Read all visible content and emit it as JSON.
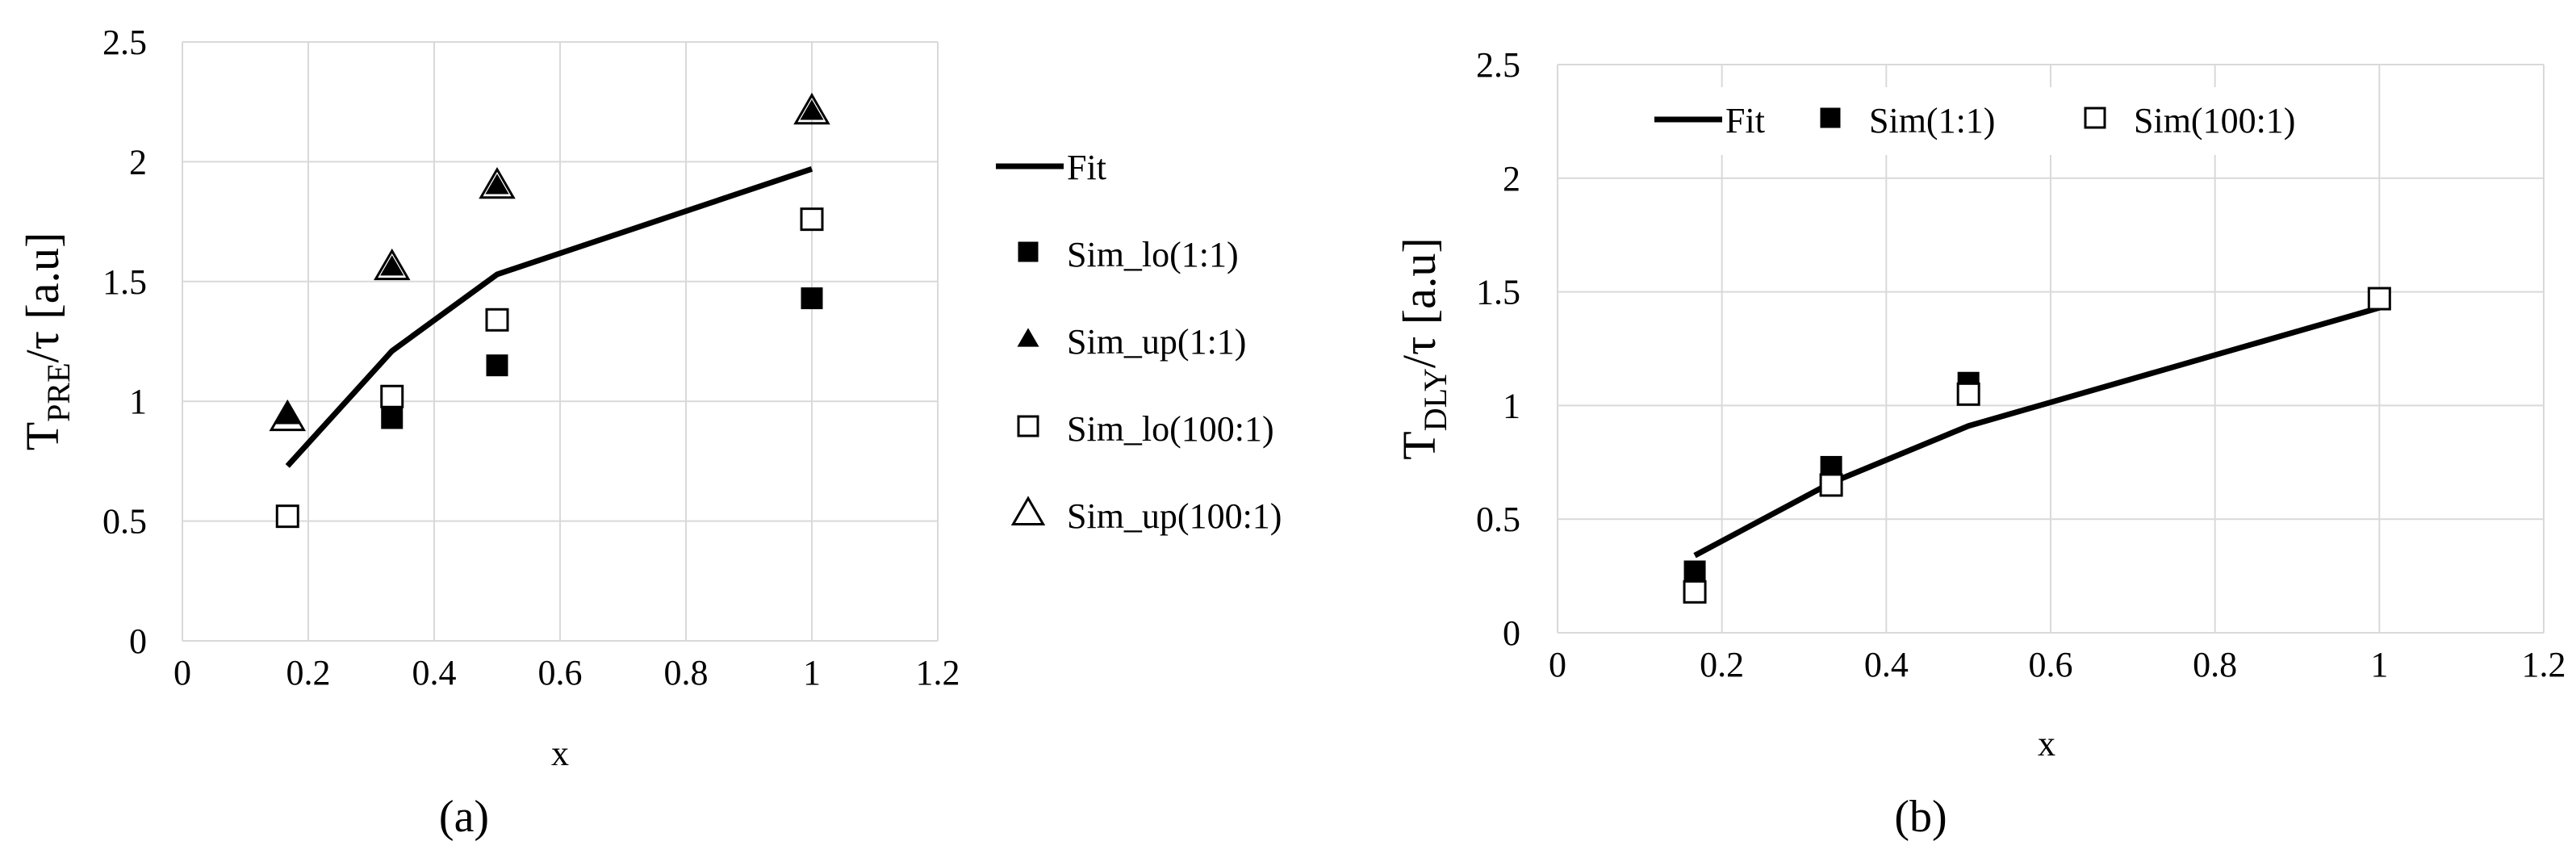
{
  "panels": [
    {
      "caption": "(a)",
      "chart_data": {
        "type": "scatter",
        "title": "",
        "xlabel": "x",
        "ylabel_main": "T",
        "ylabel_sub": "PRE",
        "ylabel_rest": "/τ [a.u]",
        "xlim": [
          0,
          1.2
        ],
        "ylim": [
          0,
          2.5
        ],
        "xticks": [
          0,
          0.2,
          0.4,
          0.6,
          0.8,
          1,
          1.2
        ],
        "yticks": [
          0,
          0.5,
          1,
          1.5,
          2,
          2.5
        ],
        "grid": true,
        "legend_position": "right",
        "series": [
          {
            "name": "Fit",
            "kind": "line",
            "x": [
              0.167,
              0.333,
              0.5,
              1
            ],
            "y": [
              0.73,
              1.21,
              1.53,
              1.97
            ]
          },
          {
            "name": "Sim_lo(1:1)",
            "kind": "marker",
            "marker": "square-filled",
            "x": [
              0.167,
              0.333,
              0.5,
              1
            ],
            "y": [
              0.52,
              0.93,
              1.15,
              1.43
            ]
          },
          {
            "name": "Sim_up(1:1)",
            "kind": "marker",
            "marker": "triangle-filled",
            "x": [
              0.167,
              0.333,
              0.5,
              1
            ],
            "y": [
              0.94,
              1.56,
              1.9,
              2.21
            ]
          },
          {
            "name": "Sim_lo(100:1)",
            "kind": "marker",
            "marker": "square-open",
            "x": [
              0.167,
              0.333,
              0.5,
              1
            ],
            "y": [
              0.52,
              1.02,
              1.34,
              1.76
            ]
          },
          {
            "name": "Sim_up(100:1)",
            "kind": "marker",
            "marker": "triangle-open",
            "x": [
              0.167,
              0.333,
              0.5,
              1
            ],
            "y": [
              0.93,
              1.56,
              1.9,
              2.21
            ]
          }
        ]
      }
    },
    {
      "caption": "(b)",
      "chart_data": {
        "type": "scatter",
        "title": "",
        "xlabel": "x",
        "ylabel_main": "T",
        "ylabel_sub": "DLY",
        "ylabel_rest": "/τ [a.u]",
        "xlim": [
          0,
          1.2
        ],
        "ylim": [
          0,
          2.5
        ],
        "xticks": [
          0,
          0.2,
          0.4,
          0.6,
          0.8,
          1,
          1.2
        ],
        "yticks": [
          0,
          0.5,
          1,
          1.5,
          2,
          2.5
        ],
        "grid": true,
        "legend_position": "top",
        "series": [
          {
            "name": "Fit",
            "kind": "line",
            "x": [
              0.167,
              0.333,
              0.5,
              1
            ],
            "y": [
              0.34,
              0.66,
              0.91,
              1.43
            ]
          },
          {
            "name": "Sim(1:1)",
            "kind": "marker",
            "marker": "square-filled",
            "x": [
              0.167,
              0.333,
              0.5,
              1
            ],
            "y": [
              0.27,
              0.73,
              1.1,
              1.47
            ]
          },
          {
            "name": "Sim(100:1)",
            "kind": "marker",
            "marker": "square-open",
            "x": [
              0.167,
              0.333,
              0.5,
              1
            ],
            "y": [
              0.18,
              0.65,
              1.05,
              1.47
            ]
          }
        ]
      }
    }
  ]
}
